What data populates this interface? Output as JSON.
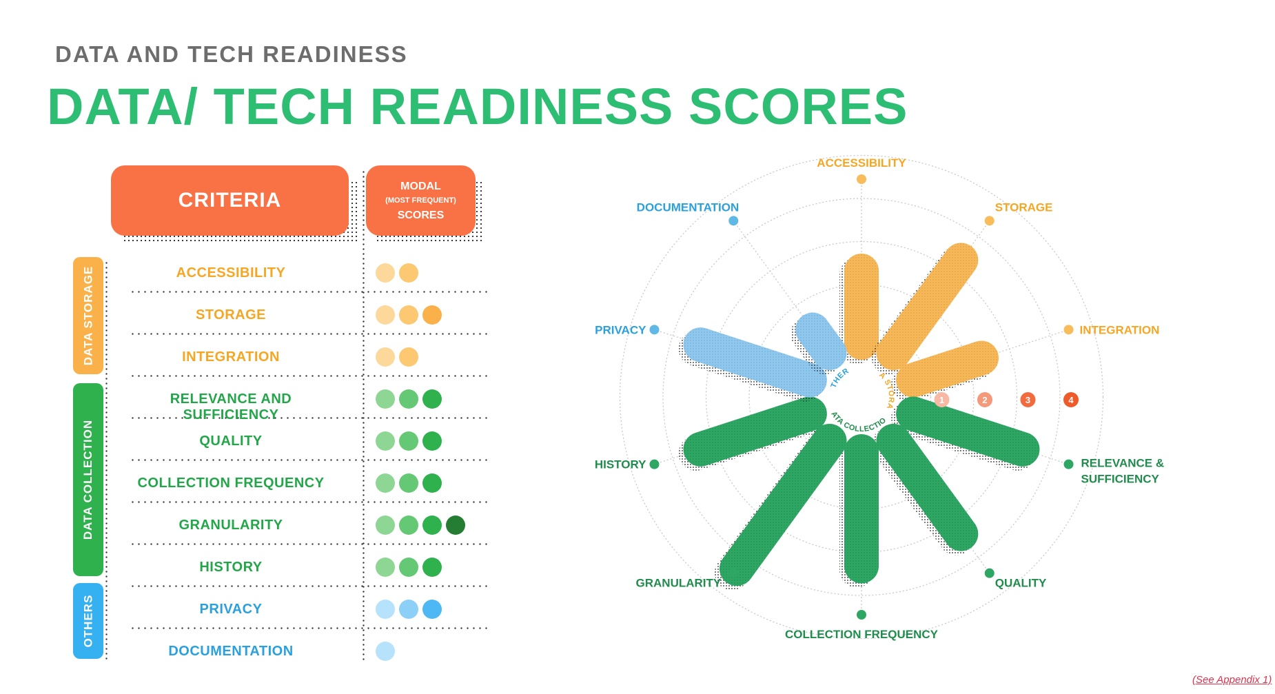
{
  "page": {
    "supertitle": "DATA AND TECH READINESS",
    "title": "DATA/ TECH READINESS SCORES",
    "appendix_note": "(See Appendix 1)"
  },
  "table": {
    "criteria_header": "CRITERIA",
    "scores_header": {
      "line1": "MODAL",
      "line2": "(MOST FREQUENT)",
      "line3": "SCORES"
    },
    "categories": [
      {
        "label": "DATA STORAGE",
        "color": "#fab14a"
      },
      {
        "label": "DATA COLLECTION",
        "color": "#2fb14e"
      },
      {
        "label": "OTHERS",
        "color": "#35b0f0"
      }
    ],
    "rows": [
      {
        "label": "ACCESSIBILITY",
        "category": 0,
        "score": 2,
        "text_color": "#f5a623"
      },
      {
        "label": "STORAGE",
        "category": 0,
        "score": 3,
        "text_color": "#f5a623"
      },
      {
        "label": "INTEGRATION",
        "category": 0,
        "score": 2,
        "text_color": "#f5a623"
      },
      {
        "label": "RELEVANCE AND SUFFICIENCY",
        "category": 1,
        "score": 3,
        "text_color": "#23a64a"
      },
      {
        "label": "QUALITY",
        "category": 1,
        "score": 3,
        "text_color": "#23a64a"
      },
      {
        "label": "COLLECTION FREQUENCY",
        "category": 1,
        "score": 3,
        "text_color": "#23a64a"
      },
      {
        "label": "GRANULARITY",
        "category": 1,
        "score": 4,
        "text_color": "#23a64a"
      },
      {
        "label": "HISTORY",
        "category": 1,
        "score": 3,
        "text_color": "#23a64a"
      },
      {
        "label": "PRIVACY",
        "category": 2,
        "score": 3,
        "text_color": "#2aa0dc"
      },
      {
        "label": "DOCUMENTATION",
        "category": 2,
        "score": 1,
        "text_color": "#2aa0dc"
      }
    ],
    "dot_colors": {
      "storage": [
        "#fdd89b",
        "#fcc872",
        "#fab14a",
        "#f59a1e"
      ],
      "collection": [
        "#8ed694",
        "#64c874",
        "#2fb14e",
        "#247d32"
      ],
      "others": [
        "#b7e2fc",
        "#8ccff7",
        "#4eb8f5",
        "#2196d6"
      ]
    }
  },
  "chart_data": {
    "type": "radial-bar",
    "categories": [
      "ACCESSIBILITY",
      "STORAGE",
      "INTEGRATION",
      "RELEVANCE & SUFFICIENCY",
      "QUALITY",
      "COLLECTION FREQUENCY",
      "GRANULARITY",
      "HISTORY",
      "PRIVACY",
      "DOCUMENTATION"
    ],
    "values": [
      2,
      3,
      2,
      3,
      3,
      3,
      4,
      3,
      3,
      1
    ],
    "groups": [
      "DATA STORAGE",
      "DATA STORAGE",
      "DATA STORAGE",
      "DATA COLLECTION",
      "DATA COLLECTION",
      "DATA COLLECTION",
      "DATA COLLECTION",
      "DATA COLLECTION",
      "OTHERS",
      "OTHERS"
    ],
    "label_colors": [
      "#f5a623",
      "#f5a623",
      "#f5a623",
      "#1f8c4c",
      "#1f8c4c",
      "#1f8c4c",
      "#1f8c4c",
      "#1f8c4c",
      "#2aa0dc",
      "#2aa0dc"
    ],
    "bar_colors": {
      "DATA STORAGE": "#f9b857",
      "DATA COLLECTION": "#2ea664",
      "OTHERS": "#8fc8ef"
    },
    "scale_ticks": [
      "1",
      "2",
      "3",
      "4"
    ],
    "scale_tick_colors": [
      "#f7b9a4",
      "#f49a7b",
      "#f26b3f",
      "#ef5a2b"
    ],
    "scale_max": 4,
    "center_labels": [
      "DATA STORAGE",
      "DATA COLLECTION",
      "OTHERS"
    ],
    "split_labels": {
      "RELEVANCE & SUFFICIENCY": [
        "RELEVANCE &",
        "SUFFICIENCY"
      ]
    }
  }
}
